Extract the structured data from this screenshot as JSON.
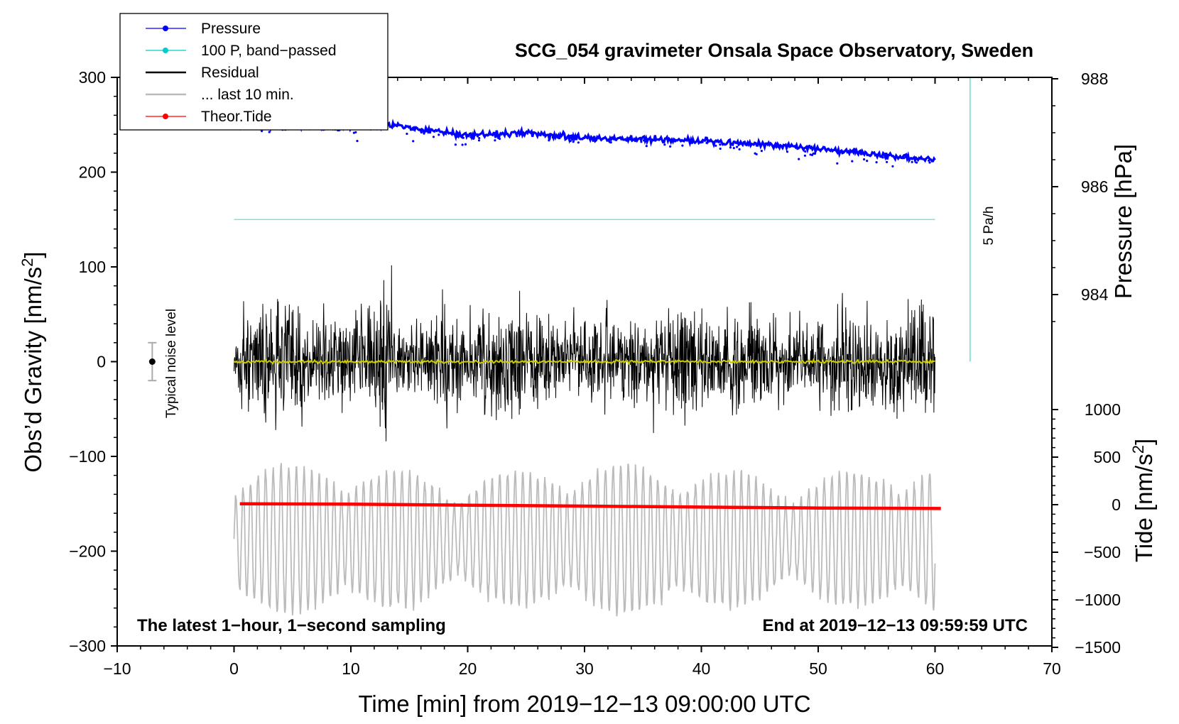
{
  "chart_data": {
    "type": "line",
    "title": "SCG_054 gravimeter Onsala Space Observatory, Sweden",
    "xlabel": "Time [min] from 2019−12−13 09:00:00 UTC",
    "ylabel": "Obs’d Gravity [nm/s²]",
    "ylabel_right_upper": "Pressure [hPa]",
    "ylabel_right_lower": "Tide [nm/s²]",
    "xlim": [
      -10,
      70
    ],
    "ylim": [
      -300,
      300
    ],
    "pressure_ylim_labels": [
      984,
      986,
      988
    ],
    "tide_ylim": [
      -1500,
      1000
    ],
    "x_ticks": [
      -10,
      0,
      10,
      20,
      30,
      40,
      50,
      60,
      70
    ],
    "x_tick_labels": [
      "−10",
      "0",
      "10",
      "20",
      "30",
      "40",
      "50",
      "60",
      "70"
    ],
    "y_ticks": [
      -300,
      -200,
      -100,
      0,
      100,
      200,
      300
    ],
    "y_tick_labels": [
      "−300",
      "−200",
      "−100",
      "0",
      "100",
      "200",
      "300"
    ],
    "pressure_ticks": [
      984,
      986,
      988
    ],
    "pressure_tick_labels": [
      "984",
      "986",
      "988"
    ],
    "tide_ticks": [
      -1500,
      -1000,
      -500,
      0,
      500,
      1000
    ],
    "tide_tick_labels": [
      "−1500",
      "−1000",
      "−500",
      "0",
      "500",
      "1000"
    ],
    "legend": {
      "location": "top-left",
      "entries": [
        {
          "label": "Pressure",
          "color": "#0000ff",
          "style": "line-dot"
        },
        {
          "label": "100 P, band−passed",
          "color": "#00cccc",
          "style": "line-dot"
        },
        {
          "label": "Residual",
          "color": "#000000",
          "style": "line"
        },
        {
          "label": "... last 10 min.",
          "color": "#bbbbbb",
          "style": "line"
        },
        {
          "label": "Theor.Tide",
          "color": "#ff0000",
          "style": "line-dot"
        }
      ]
    },
    "series": [
      {
        "name": "Pressure",
        "axis": "pressure_hPa",
        "color": "#0000ff",
        "x": [
          0,
          5,
          10,
          13,
          20,
          25,
          30,
          35,
          40,
          45,
          50,
          55,
          60
        ],
        "y": [
          987.15,
          987.12,
          987.1,
          987.15,
          986.95,
          987.0,
          986.9,
          986.88,
          986.85,
          986.78,
          986.7,
          986.6,
          986.5
        ]
      },
      {
        "name": "100 P, band−passed",
        "axis": "gravity",
        "color": "#80e0e0",
        "x": [
          0,
          60
        ],
        "y": [
          150,
          150
        ]
      },
      {
        "name": "Residual",
        "axis": "gravity",
        "color": "#000000",
        "x": [
          0,
          60
        ],
        "amplitude_range": [
          -105,
          108
        ]
      },
      {
        "name": "Residual mean",
        "axis": "gravity",
        "color": "#cccc00",
        "x": [
          0,
          60
        ],
        "y": [
          0,
          0
        ]
      },
      {
        "name": "... last 10 min.",
        "axis": "gravity",
        "color": "#bbbbbb",
        "x": [
          0,
          60
        ],
        "y_range": [
          -270,
          -105
        ]
      },
      {
        "name": "Theor.Tide",
        "axis": "tide",
        "color": "#ff0000",
        "x": [
          0.5,
          10,
          20,
          30,
          40,
          50,
          60.5
        ],
        "y": [
          10,
          5,
          -5,
          -15,
          -25,
          -35,
          -40
        ]
      }
    ],
    "annotations": {
      "noise_label": "Typical noise level",
      "noise_bar": {
        "x": -7,
        "y_center": 0,
        "y_low": -20,
        "y_high": 20
      },
      "rate_label": "5 Pa/h",
      "rate_bar": {
        "x": 63,
        "y_low": 0,
        "y_high": 300
      },
      "bottom_left_note": "The latest 1−hour, 1−second sampling",
      "bottom_right_note": "End at 2019−12−13 09:59:59 UTC"
    }
  }
}
